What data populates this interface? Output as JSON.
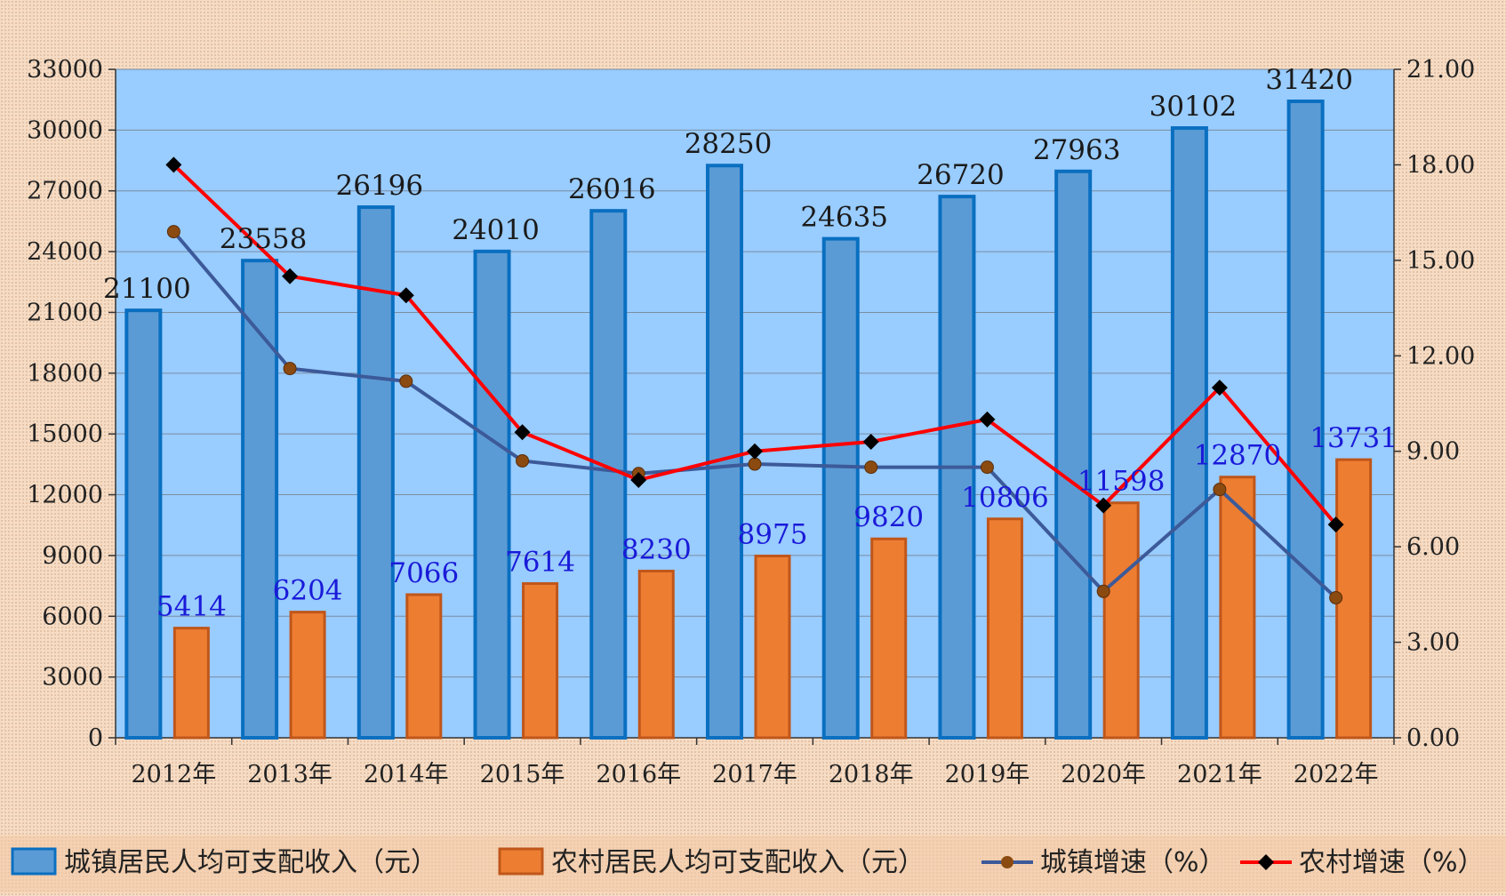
{
  "chart_data": {
    "type": "bar",
    "categories": [
      "2012年",
      "2013年",
      "2014年",
      "2015年",
      "2016年",
      "2017年",
      "2018年",
      "2019年",
      "2020年",
      "2021年",
      "2022年"
    ],
    "series": [
      {
        "name": "城镇居民人均可支配收入（元）",
        "type": "bar",
        "axis": "left",
        "values": [
          21100,
          23558,
          26196,
          24010,
          26016,
          28250,
          24635,
          26720,
          27963,
          30102,
          31420
        ]
      },
      {
        "name": "农村居民人均可支配收入（元）",
        "type": "bar",
        "axis": "left",
        "values": [
          5414,
          6204,
          7066,
          7614,
          8230,
          8975,
          9820,
          10806,
          11598,
          12870,
          13731
        ]
      },
      {
        "name": "城镇增速（%）",
        "type": "line",
        "axis": "right",
        "values": [
          15.9,
          11.6,
          11.2,
          8.7,
          8.3,
          8.6,
          8.5,
          8.5,
          4.6,
          7.8,
          4.4
        ]
      },
      {
        "name": "农村增速（%）",
        "type": "line",
        "axis": "right",
        "values": [
          18.0,
          14.5,
          13.9,
          9.6,
          8.1,
          9.0,
          9.3,
          10.0,
          7.3,
          11.0,
          6.7
        ]
      }
    ],
    "y_left": {
      "min": 0,
      "max": 33000,
      "ticks": [
        "0",
        "3000",
        "6000",
        "9000",
        "12000",
        "15000",
        "18000",
        "21000",
        "24000",
        "27000",
        "30000",
        "33000"
      ]
    },
    "y_right": {
      "min": 0,
      "max": 21,
      "ticks": [
        "0.00",
        "3.00",
        "6.00",
        "9.00",
        "12.00",
        "15.00",
        "18.00",
        "21.00"
      ]
    },
    "grid": true,
    "legend_position": "bottom",
    "colors": {
      "plot_bg": "#99ccff",
      "urban_bar": "#5b9bd5",
      "urban_bar_border": "#0a6fc0",
      "rural_bar": "#ed7d31",
      "rural_bar_border": "#c0561a",
      "urban_line": "#3c5a99",
      "urban_marker": "#8b4a10",
      "rural_line": "#ff0000",
      "rural_marker": "#000000",
      "urban_label": "#1a1a1a",
      "rural_label": "#1a1ad8"
    }
  }
}
